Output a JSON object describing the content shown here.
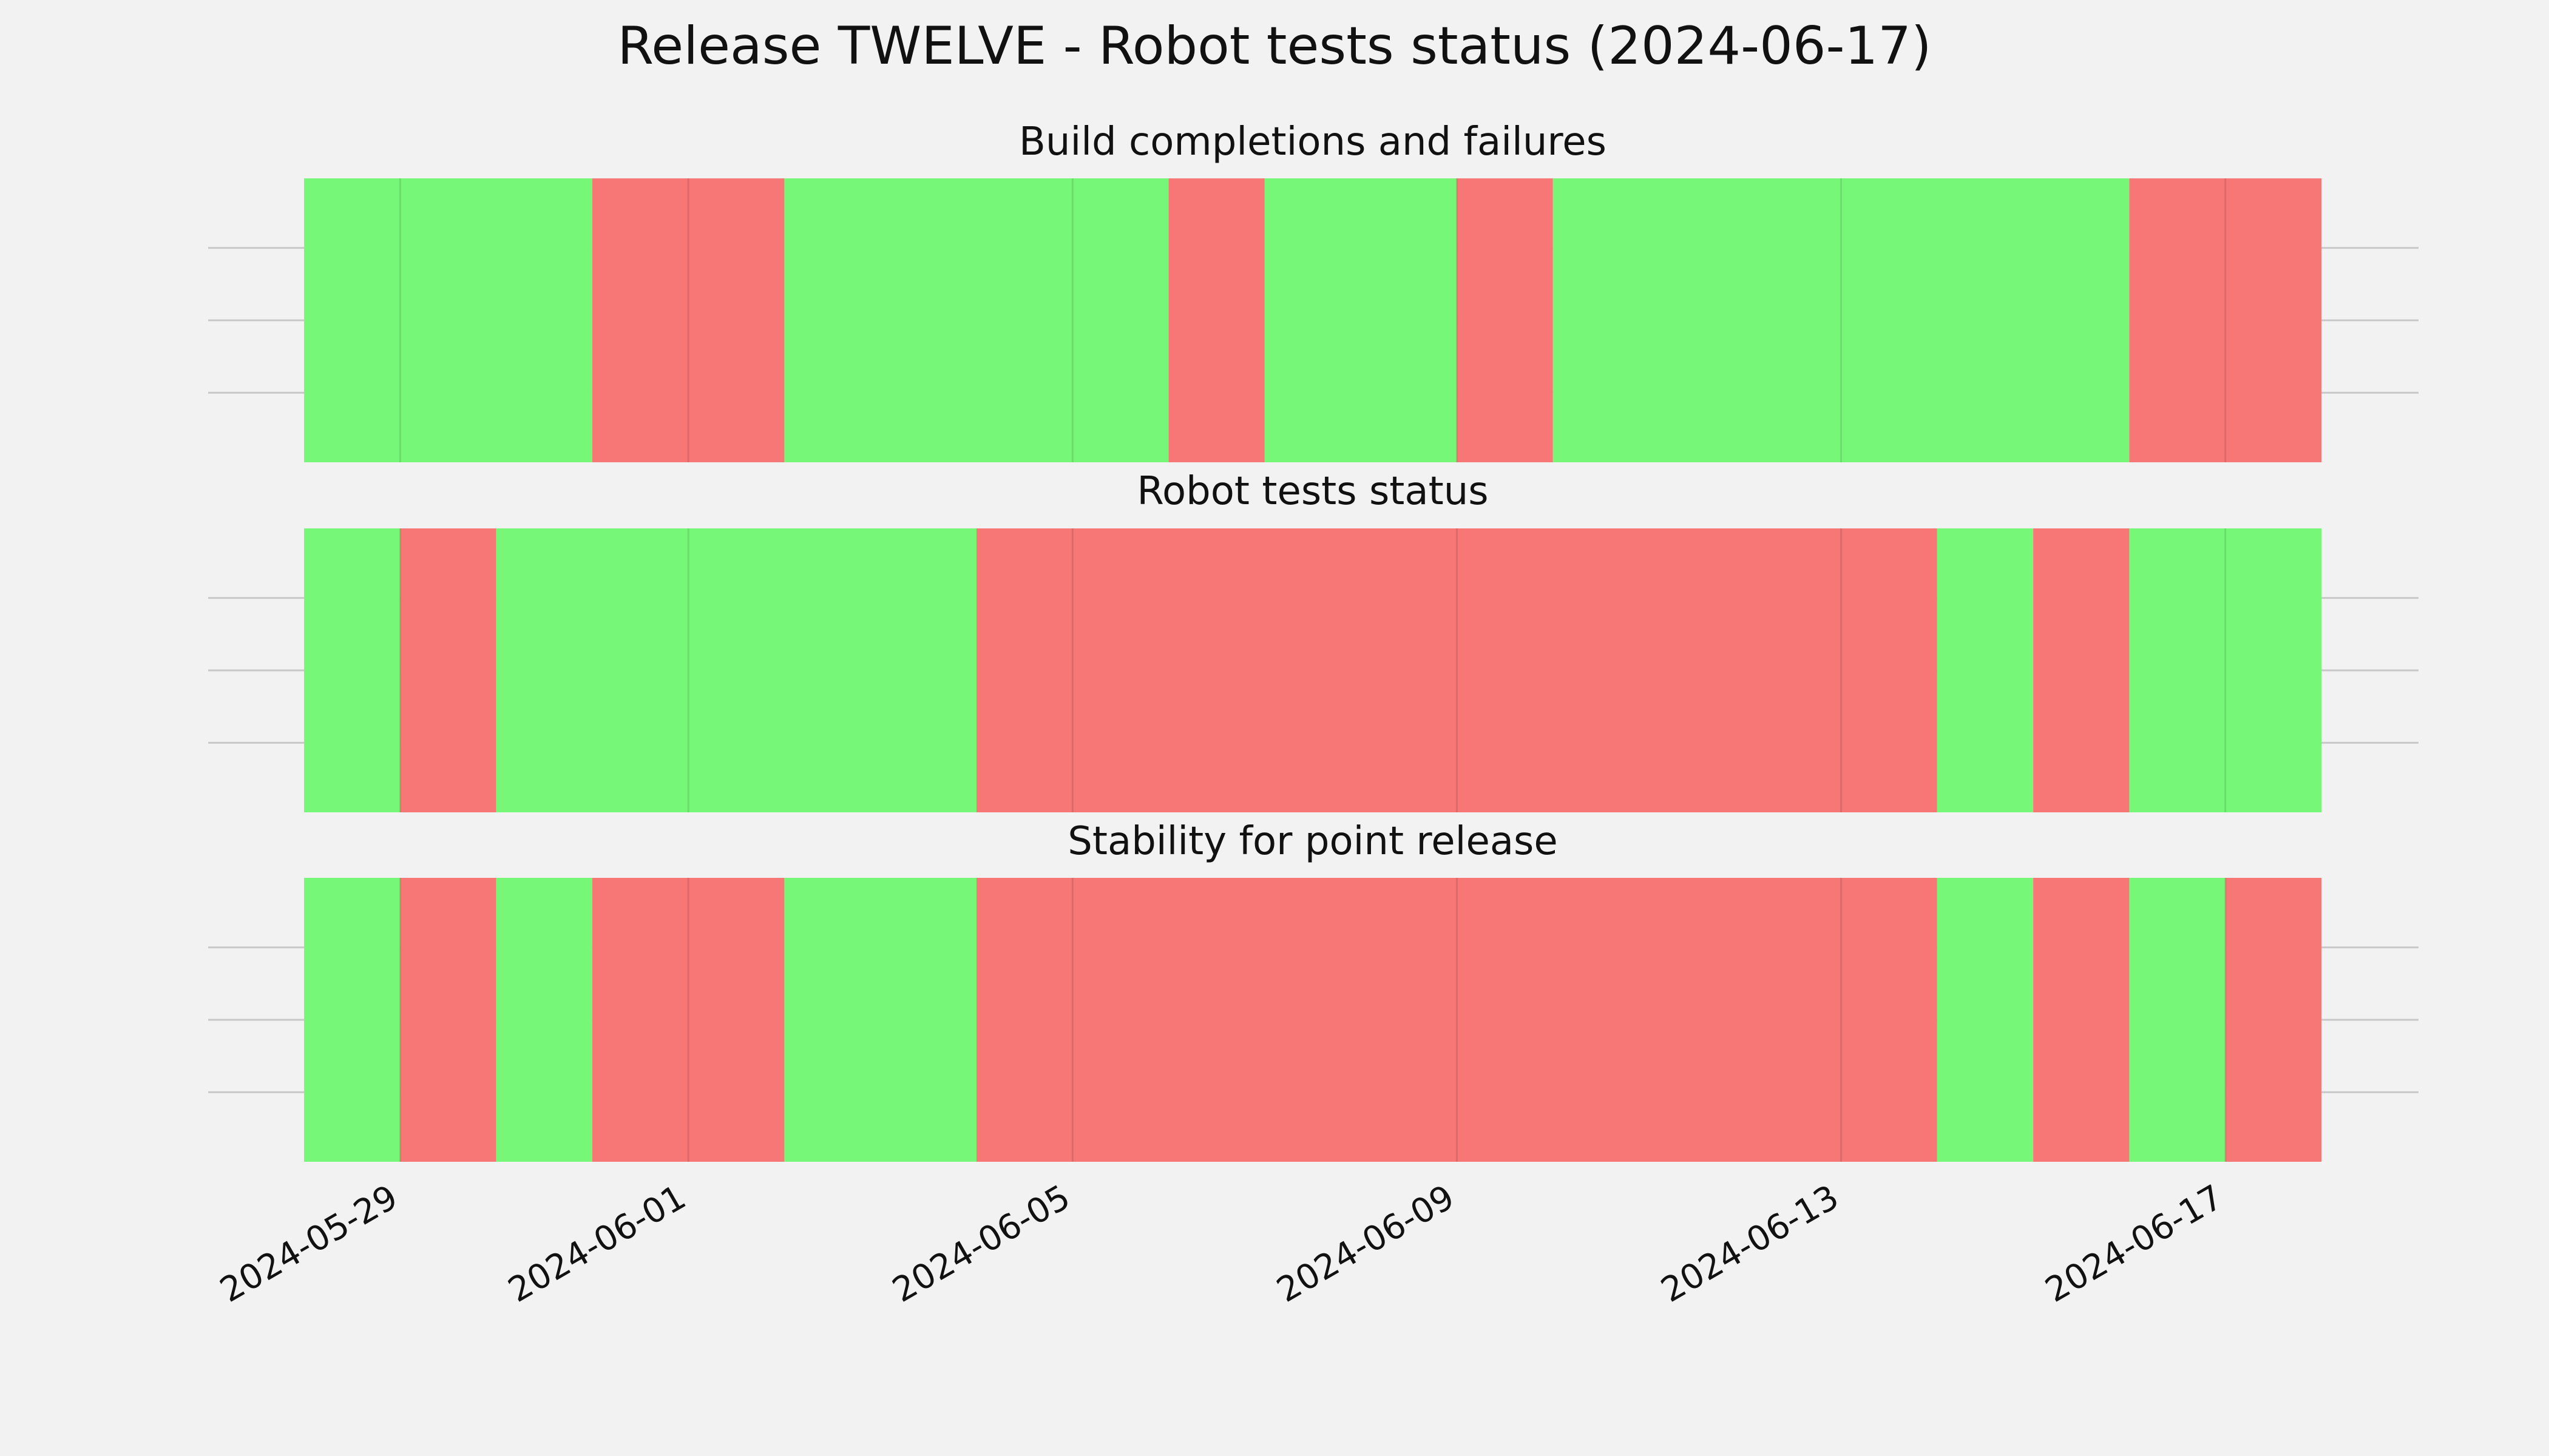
{
  "chart_data": {
    "type": "timeline",
    "title": "Release TWELVE - Robot tests status (2024-06-17)",
    "xlim": [
      "2024-05-28",
      "2024-06-18"
    ],
    "x_ticks": [
      "2024-05-29",
      "2024-06-01",
      "2024-06-05",
      "2024-06-09",
      "2024-06-13",
      "2024-06-17"
    ],
    "colors": {
      "pass": "#77f777",
      "fail": "#f77777"
    },
    "panels": [
      {
        "title": "Build completions and failures",
        "segments": [
          {
            "start": "2024-05-28",
            "end": "2024-05-31",
            "status": "pass"
          },
          {
            "start": "2024-05-31",
            "end": "2024-06-02",
            "status": "fail"
          },
          {
            "start": "2024-06-02",
            "end": "2024-06-06",
            "status": "pass"
          },
          {
            "start": "2024-06-06",
            "end": "2024-06-07",
            "status": "fail"
          },
          {
            "start": "2024-06-07",
            "end": "2024-06-09",
            "status": "pass"
          },
          {
            "start": "2024-06-09",
            "end": "2024-06-10",
            "status": "fail"
          },
          {
            "start": "2024-06-10",
            "end": "2024-06-16",
            "status": "pass"
          },
          {
            "start": "2024-06-16",
            "end": "2024-06-18",
            "status": "fail"
          }
        ]
      },
      {
        "title": "Robot tests status",
        "segments": [
          {
            "start": "2024-05-28",
            "end": "2024-05-29",
            "status": "pass"
          },
          {
            "start": "2024-05-29",
            "end": "2024-05-30",
            "status": "fail"
          },
          {
            "start": "2024-05-30",
            "end": "2024-06-04",
            "status": "pass"
          },
          {
            "start": "2024-06-04",
            "end": "2024-06-14",
            "status": "fail"
          },
          {
            "start": "2024-06-14",
            "end": "2024-06-15",
            "status": "pass"
          },
          {
            "start": "2024-06-15",
            "end": "2024-06-16",
            "status": "fail"
          },
          {
            "start": "2024-06-16",
            "end": "2024-06-18",
            "status": "pass"
          }
        ]
      },
      {
        "title": "Stability for point release",
        "segments": [
          {
            "start": "2024-05-28",
            "end": "2024-05-29",
            "status": "pass"
          },
          {
            "start": "2024-05-29",
            "end": "2024-05-30",
            "status": "fail"
          },
          {
            "start": "2024-05-30",
            "end": "2024-05-31",
            "status": "pass"
          },
          {
            "start": "2024-05-31",
            "end": "2024-06-02",
            "status": "fail"
          },
          {
            "start": "2024-06-02",
            "end": "2024-06-04",
            "status": "pass"
          },
          {
            "start": "2024-06-04",
            "end": "2024-06-14",
            "status": "fail"
          },
          {
            "start": "2024-06-14",
            "end": "2024-06-15",
            "status": "pass"
          },
          {
            "start": "2024-06-15",
            "end": "2024-06-16",
            "status": "fail"
          },
          {
            "start": "2024-06-16",
            "end": "2024-06-17",
            "status": "pass"
          },
          {
            "start": "2024-06-17",
            "end": "2024-06-18",
            "status": "fail"
          }
        ]
      }
    ],
    "grid": true,
    "legend": "none"
  }
}
